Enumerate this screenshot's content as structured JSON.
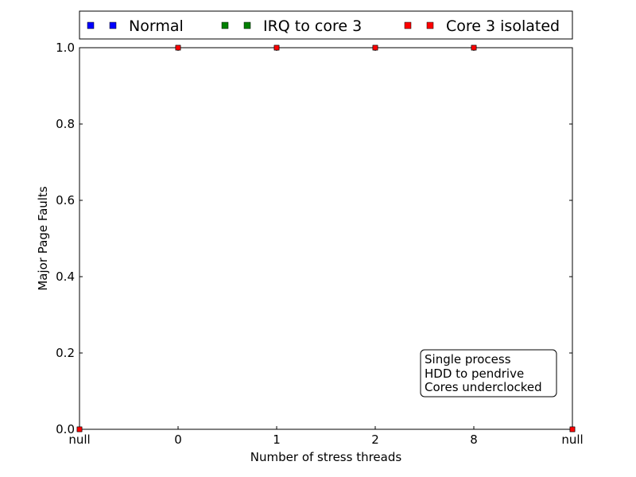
{
  "chart_data": {
    "type": "scatter",
    "xlabel": "Number of stress threads",
    "ylabel": "Major Page Faults",
    "categories": [
      "null",
      "0",
      "1",
      "2",
      "8",
      "null"
    ],
    "ylim": [
      0.0,
      1.0
    ],
    "yticks": [
      "0.0",
      "0.2",
      "0.4",
      "0.6",
      "0.8",
      "1.0"
    ],
    "grid": false,
    "legend_position": "top, outside plot",
    "series": [
      {
        "name": "Normal",
        "color": "#0000ff",
        "values": [
          0.0,
          1.0,
          1.0,
          1.0,
          1.0,
          0.0
        ]
      },
      {
        "name": "IRQ to core 3",
        "color": "#008000",
        "values": [
          0.0,
          1.0,
          1.0,
          1.0,
          1.0,
          0.0
        ]
      },
      {
        "name": "Core 3 isolated",
        "color": "#ff0000",
        "values": [
          0.0,
          1.0,
          1.0,
          1.0,
          1.0,
          0.0
        ]
      }
    ],
    "annotation": [
      "Single process",
      "HDD to pendrive",
      "Cores underclocked"
    ]
  }
}
